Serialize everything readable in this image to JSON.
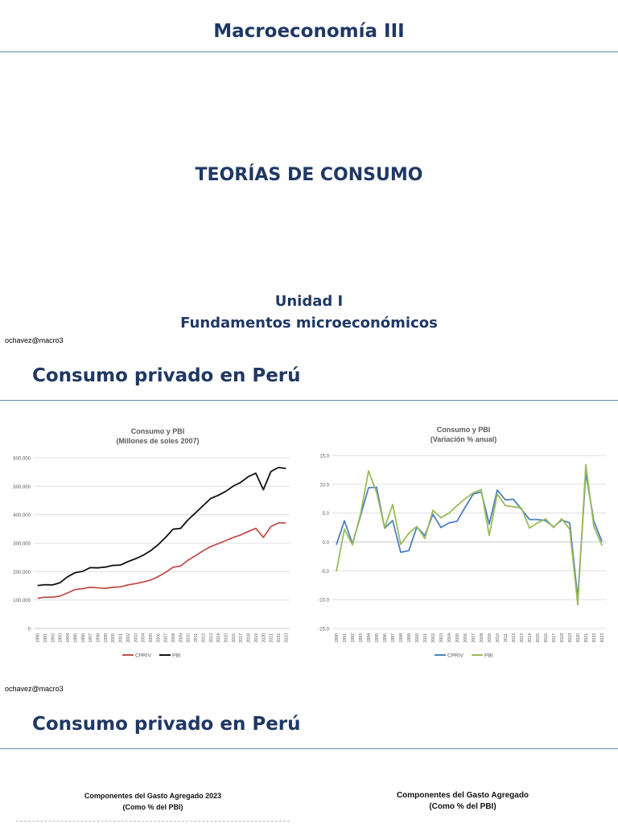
{
  "slide1": {
    "course_title": "Macroeconomía III",
    "main_title": "TEORÍAS DE CONSUMO",
    "unit": "Unidad I",
    "unit_subtitle": "Fundamentos microeconómicos",
    "footer": "ochavez@macro3"
  },
  "slide2": {
    "heading": "Consumo privado en Perú",
    "footer": "ochavez@macro3"
  },
  "slide3": {
    "heading": "Consumo privado en Perú",
    "chart_left_title": [
      "Componentes del Gasto Agregado 2023",
      "(Como % del PBI)"
    ],
    "chart_right_title": [
      "Componentes del Gasto Agregado",
      "(Como % del PBI)"
    ]
  },
  "chart_data": [
    {
      "type": "line",
      "title": "Consumo y PBI",
      "subtitle": "(Millones de soles 2007)",
      "x": [
        "1990",
        "1991",
        "1992",
        "1993",
        "1994",
        "1995",
        "1996",
        "1997",
        "1998",
        "1999",
        "2000",
        "2001",
        "2002",
        "2003",
        "2004",
        "2005",
        "2006",
        "2007",
        "2008",
        "2009",
        "2010",
        "2011",
        "2012",
        "2013",
        "2014",
        "2015",
        "2016",
        "2017",
        "2018",
        "2019",
        "2020",
        "2021",
        "2022",
        "2023"
      ],
      "yticks": [
        "0",
        "100,000",
        "200,000",
        "300,000",
        "400,000",
        "500,000",
        "600,000"
      ],
      "ylim": [
        0,
        600000
      ],
      "series": [
        {
          "name": "CPRIV",
          "color": "#c0504d",
          "values": [
            106000,
            110000,
            110000,
            114000,
            125000,
            137000,
            140000,
            145000,
            143000,
            141000,
            145000,
            146000,
            153000,
            158000,
            163000,
            170000,
            182000,
            197000,
            215000,
            220000,
            240000,
            256000,
            273000,
            288000,
            298000,
            309000,
            320000,
            329000,
            341000,
            352000,
            320000,
            358000,
            371000,
            371000
          ]
        },
        {
          "name": "PBI",
          "color": "#111111",
          "values": [
            151000,
            154000,
            153000,
            161000,
            182000,
            196000,
            201000,
            214000,
            213000,
            216000,
            222000,
            223000,
            235000,
            245000,
            257000,
            273000,
            294000,
            320000,
            349000,
            352000,
            382000,
            407000,
            432000,
            457000,
            468000,
            482000,
            501000,
            514000,
            534000,
            546000,
            488000,
            552000,
            566000,
            563000
          ]
        }
      ],
      "legend": "bottom"
    },
    {
      "type": "line",
      "title": "Consumo y PBI",
      "subtitle": "(Variación % anual)",
      "x": [
        "1990",
        "1991",
        "1992",
        "1993",
        "1994",
        "1995",
        "1996",
        "1997",
        "1998",
        "1999",
        "2000",
        "2001",
        "2002",
        "2003",
        "2004",
        "2005",
        "2006",
        "2007",
        "2008",
        "2009",
        "2010",
        "2011",
        "2012",
        "2013",
        "2014",
        "2015",
        "2016",
        "2017",
        "2018",
        "2019",
        "2020",
        "2021",
        "2022",
        "2023"
      ],
      "yticks": [
        "-15.0",
        "-10.0",
        "-5.0",
        "0.0",
        "5.0",
        "10.0",
        "15.0"
      ],
      "ylim": [
        -15,
        15
      ],
      "series": [
        {
          "name": "CPRIV",
          "color": "#4f81bd",
          "values": [
            -0.5,
            3.7,
            -0.3,
            4.5,
            9.4,
            9.5,
            2.4,
            3.7,
            -1.8,
            -1.5,
            2.6,
            1.1,
            4.8,
            2.5,
            3.3,
            3.6,
            6.0,
            8.3,
            8.7,
            3.1,
            9.0,
            7.3,
            7.4,
            5.7,
            3.9,
            3.9,
            3.7,
            2.6,
            3.8,
            3.3,
            -9.8,
            12.0,
            3.6,
            0.1
          ]
        },
        {
          "name": "PBI",
          "color": "#9bbb59",
          "values": [
            -5.1,
            2.2,
            -0.5,
            4.8,
            12.3,
            8.6,
            2.5,
            6.5,
            -0.4,
            1.5,
            2.7,
            0.6,
            5.5,
            4.2,
            5.0,
            6.3,
            7.5,
            8.5,
            9.1,
            1.1,
            8.3,
            6.3,
            6.1,
            5.9,
            2.4,
            3.3,
            4.0,
            2.5,
            4.0,
            2.2,
            -10.9,
            13.4,
            2.7,
            -0.6
          ]
        }
      ],
      "legend": "bottom"
    }
  ]
}
